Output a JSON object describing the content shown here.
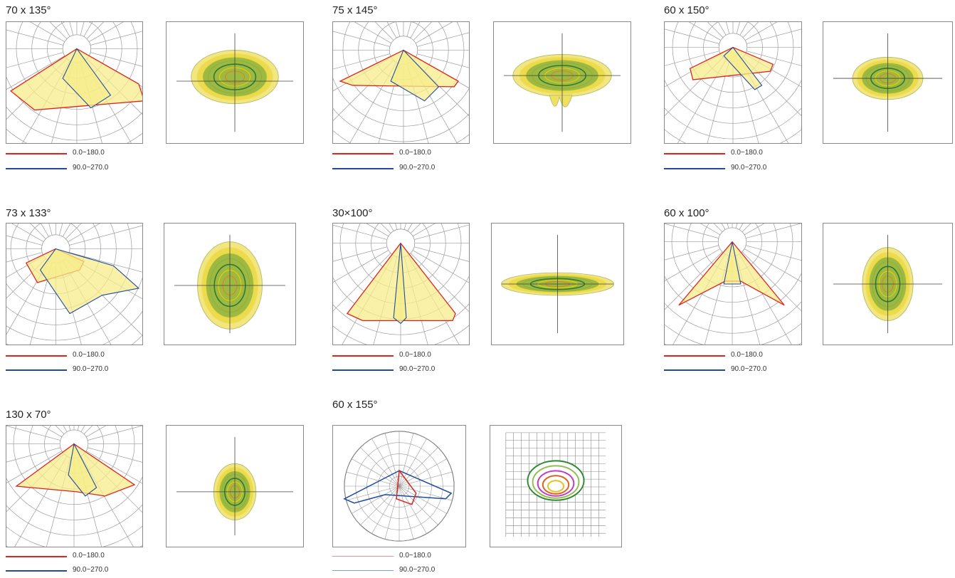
{
  "colors": {
    "curve_0_180": "#e0231c",
    "curve_90_270": "#1f4aa0",
    "fill": "#f6ec8a",
    "grid": "#9a9a9a",
    "frame": "#8a8a8a"
  },
  "panels": [
    {
      "title": "70 x 135°",
      "legend": [
        "0.0~180.0",
        "90.0~270.0"
      ]
    },
    {
      "title": "75 x 145°",
      "legend": [
        "0.0~180.0",
        "90.0~270.0"
      ]
    },
    {
      "title": "60 x 150°",
      "legend": [
        "0.0~180.0",
        "90.0~270.0"
      ]
    },
    {
      "title": "73 x 133°",
      "legend": [
        "0.0~180.0",
        "90.0~270.0"
      ]
    },
    {
      "title": "30×100°",
      "legend": [
        "0.0~180.0",
        "90.0~270.0"
      ]
    },
    {
      "title": "60 x 100°",
      "legend": [
        "0.0~180.0",
        "90.0~270.0"
      ]
    },
    {
      "title": "130 x 70°",
      "legend": [
        "0.0~180.0",
        "90.0~270.0"
      ]
    },
    {
      "title": "60 x 155°",
      "legend": [
        "0.0~180.0",
        "90.0~270.0"
      ]
    }
  ]
}
